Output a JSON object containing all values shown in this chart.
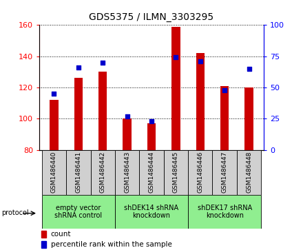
{
  "title": "GDS5375 / ILMN_3303295",
  "samples": [
    "GSM1486440",
    "GSM1486441",
    "GSM1486442",
    "GSM1486443",
    "GSM1486444",
    "GSM1486445",
    "GSM1486446",
    "GSM1486447",
    "GSM1486448"
  ],
  "counts": [
    112,
    126,
    130,
    100,
    97,
    159,
    142,
    121,
    120
  ],
  "percentiles": [
    45,
    66,
    70,
    27,
    23,
    74,
    71,
    48,
    65
  ],
  "ylim_left": [
    80,
    160
  ],
  "ylim_right": [
    0,
    100
  ],
  "yticks_left": [
    80,
    100,
    120,
    140,
    160
  ],
  "yticks_right": [
    0,
    25,
    50,
    75,
    100
  ],
  "bar_color": "#CC0000",
  "dot_color": "#0000CC",
  "bar_width": 0.35,
  "group_defs": [
    {
      "start": 0,
      "end": 3,
      "label": "empty vector\nshRNA control"
    },
    {
      "start": 3,
      "end": 6,
      "label": "shDEK14 shRNA\nknockdown"
    },
    {
      "start": 6,
      "end": 9,
      "label": "shDEK17 shRNA\nknockdown"
    }
  ],
  "group_color": "#90EE90",
  "sample_box_color": "#D0D0D0",
  "legend_items": [
    {
      "label": "count",
      "color": "#CC0000"
    },
    {
      "label": "percentile rank within the sample",
      "color": "#0000CC"
    }
  ]
}
